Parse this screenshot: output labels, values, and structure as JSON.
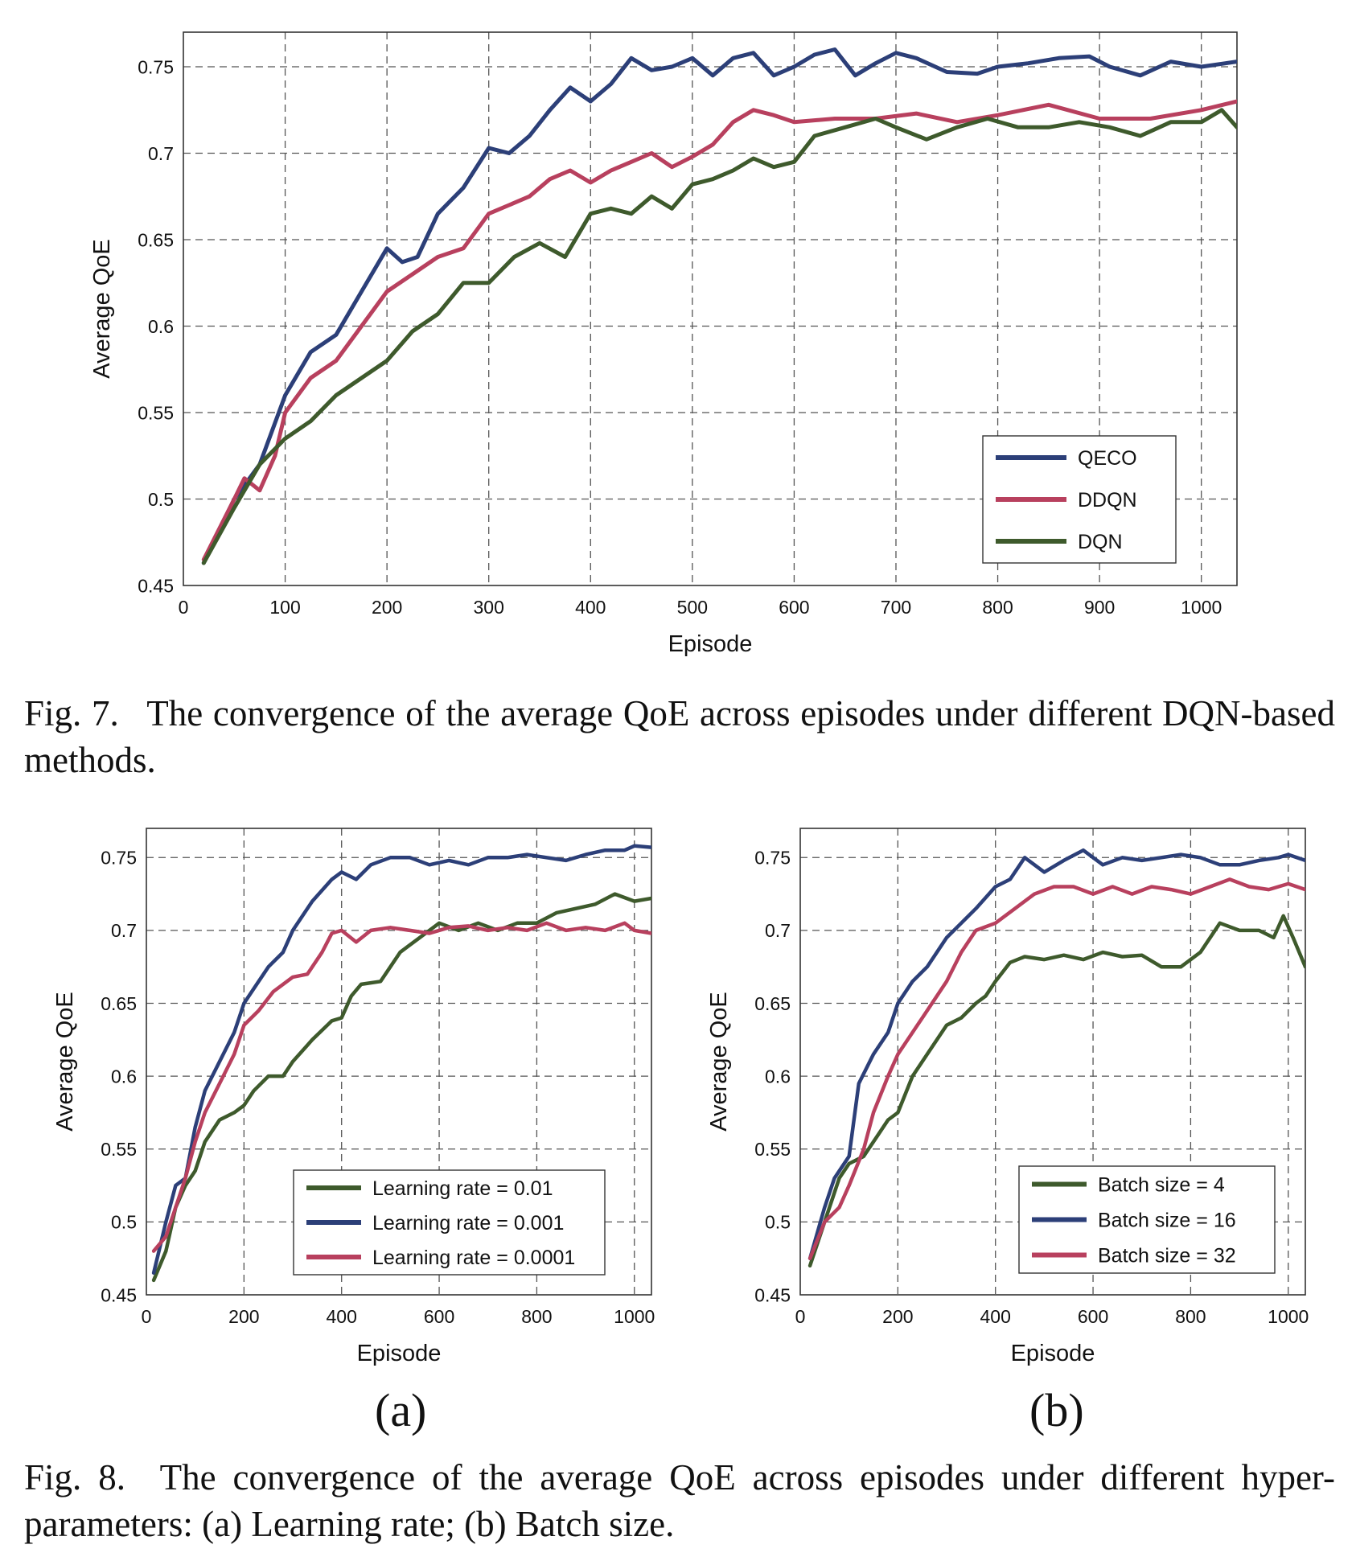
{
  "figure7": {
    "caption": "Fig. 7.  The convergence of the average QoE across episodes under different DQN-based methods."
  },
  "figure8": {
    "caption": "Fig. 8.  The convergence of the average QoE across episodes under different hyper-parameters: (a) Learning rate; (b) Batch size.",
    "panel_a_label": "(a)",
    "panel_b_label": "(b)"
  },
  "colors": {
    "blue": "#2c3f78",
    "pink": "#b8405e",
    "green": "#3e5a2c",
    "grid": "#555555",
    "frame": "#333333"
  },
  "chart_data": [
    {
      "id": "fig7",
      "type": "line",
      "xlabel": "Episode",
      "ylabel": "Average QoE",
      "xlim": [
        0,
        1035
      ],
      "ylim": [
        0.45,
        0.77
      ],
      "xticks": [
        0,
        100,
        200,
        300,
        400,
        500,
        600,
        700,
        800,
        900,
        1000
      ],
      "yticks": [
        0.45,
        0.5,
        0.55,
        0.6,
        0.65,
        0.7,
        0.75
      ],
      "ytick_labels": [
        "0.45",
        "0.5",
        "0.55",
        "0.6",
        "0.65",
        "0.7",
        "0.75"
      ],
      "grid": true,
      "legend_position": "bottom-right",
      "series": [
        {
          "name": "QECO",
          "color": "#2c3f78",
          "x": [
            20,
            50,
            75,
            100,
            125,
            150,
            175,
            200,
            215,
            230,
            250,
            275,
            300,
            320,
            340,
            360,
            380,
            400,
            420,
            440,
            460,
            480,
            500,
            520,
            540,
            560,
            580,
            600,
            620,
            640,
            660,
            680,
            700,
            720,
            750,
            780,
            800,
            830,
            860,
            890,
            910,
            940,
            970,
            1000,
            1035
          ],
          "y": [
            0.463,
            0.5,
            0.52,
            0.56,
            0.585,
            0.595,
            0.62,
            0.645,
            0.637,
            0.64,
            0.665,
            0.68,
            0.703,
            0.7,
            0.71,
            0.725,
            0.738,
            0.73,
            0.74,
            0.755,
            0.748,
            0.75,
            0.755,
            0.745,
            0.755,
            0.758,
            0.745,
            0.75,
            0.757,
            0.76,
            0.745,
            0.752,
            0.758,
            0.755,
            0.747,
            0.746,
            0.75,
            0.752,
            0.755,
            0.756,
            0.75,
            0.745,
            0.753,
            0.75,
            0.753
          ]
        },
        {
          "name": "DDQN",
          "color": "#b8405e",
          "x": [
            20,
            50,
            60,
            75,
            90,
            100,
            125,
            150,
            175,
            200,
            225,
            250,
            275,
            300,
            320,
            340,
            360,
            380,
            400,
            420,
            440,
            460,
            480,
            500,
            520,
            540,
            560,
            580,
            600,
            640,
            680,
            720,
            760,
            800,
            850,
            900,
            950,
            1000,
            1035
          ],
          "y": [
            0.465,
            0.5,
            0.512,
            0.505,
            0.525,
            0.55,
            0.57,
            0.58,
            0.6,
            0.62,
            0.63,
            0.64,
            0.645,
            0.665,
            0.67,
            0.675,
            0.685,
            0.69,
            0.683,
            0.69,
            0.695,
            0.7,
            0.692,
            0.698,
            0.705,
            0.718,
            0.725,
            0.722,
            0.718,
            0.72,
            0.72,
            0.723,
            0.718,
            0.722,
            0.728,
            0.72,
            0.72,
            0.725,
            0.73
          ]
        },
        {
          "name": "DQN",
          "color": "#3e5a2c",
          "x": [
            20,
            50,
            75,
            100,
            125,
            150,
            175,
            200,
            225,
            250,
            275,
            300,
            325,
            350,
            375,
            400,
            420,
            440,
            460,
            480,
            500,
            520,
            540,
            560,
            580,
            600,
            620,
            650,
            680,
            700,
            730,
            760,
            790,
            820,
            850,
            880,
            910,
            940,
            970,
            1000,
            1020,
            1035
          ],
          "y": [
            0.463,
            0.495,
            0.52,
            0.535,
            0.545,
            0.56,
            0.57,
            0.58,
            0.597,
            0.607,
            0.625,
            0.625,
            0.64,
            0.648,
            0.64,
            0.665,
            0.668,
            0.665,
            0.675,
            0.668,
            0.682,
            0.685,
            0.69,
            0.697,
            0.692,
            0.695,
            0.71,
            0.715,
            0.72,
            0.715,
            0.708,
            0.715,
            0.72,
            0.715,
            0.715,
            0.718,
            0.715,
            0.71,
            0.718,
            0.718,
            0.725,
            0.715
          ]
        }
      ]
    },
    {
      "id": "fig8a",
      "type": "line",
      "xlabel": "Episode",
      "ylabel": "Average QoE",
      "xlim": [
        0,
        1035
      ],
      "ylim": [
        0.45,
        0.77
      ],
      "xticks": [
        0,
        200,
        400,
        600,
        800,
        1000
      ],
      "yticks": [
        0.45,
        0.5,
        0.55,
        0.6,
        0.65,
        0.7,
        0.75
      ],
      "ytick_labels": [
        "0.45",
        "0.5",
        "0.55",
        "0.6",
        "0.65",
        "0.7",
        "0.75"
      ],
      "grid": true,
      "legend_position": "bottom-right",
      "series": [
        {
          "name": "Learning rate = 0.01",
          "color": "#3e5a2c",
          "x": [
            15,
            40,
            60,
            80,
            100,
            120,
            150,
            180,
            200,
            220,
            250,
            280,
            300,
            340,
            380,
            400,
            420,
            440,
            480,
            520,
            560,
            600,
            640,
            680,
            720,
            760,
            800,
            840,
            880,
            920,
            960,
            1000,
            1035
          ],
          "y": [
            0.46,
            0.48,
            0.51,
            0.525,
            0.535,
            0.555,
            0.57,
            0.575,
            0.58,
            0.59,
            0.6,
            0.6,
            0.61,
            0.625,
            0.638,
            0.64,
            0.655,
            0.663,
            0.665,
            0.685,
            0.695,
            0.705,
            0.7,
            0.705,
            0.7,
            0.705,
            0.705,
            0.712,
            0.715,
            0.718,
            0.725,
            0.72,
            0.722
          ]
        },
        {
          "name": "Learning rate = 0.001",
          "color": "#2c3f78",
          "x": [
            15,
            40,
            60,
            80,
            100,
            120,
            150,
            180,
            200,
            220,
            250,
            280,
            300,
            340,
            380,
            400,
            430,
            460,
            500,
            540,
            580,
            620,
            660,
            700,
            740,
            780,
            820,
            860,
            900,
            940,
            980,
            1000,
            1035
          ],
          "y": [
            0.465,
            0.5,
            0.525,
            0.53,
            0.565,
            0.59,
            0.61,
            0.63,
            0.65,
            0.66,
            0.675,
            0.685,
            0.7,
            0.72,
            0.735,
            0.74,
            0.735,
            0.745,
            0.75,
            0.75,
            0.745,
            0.748,
            0.745,
            0.75,
            0.75,
            0.752,
            0.75,
            0.748,
            0.752,
            0.755,
            0.755,
            0.758,
            0.757
          ]
        },
        {
          "name": "Learning rate = 0.0001",
          "color": "#b8405e",
          "x": [
            15,
            40,
            60,
            80,
            100,
            120,
            150,
            180,
            200,
            230,
            260,
            300,
            330,
            360,
            380,
            400,
            430,
            460,
            500,
            540,
            580,
            620,
            660,
            700,
            740,
            780,
            820,
            860,
            900,
            940,
            980,
            1000,
            1035
          ],
          "y": [
            0.48,
            0.49,
            0.51,
            0.53,
            0.555,
            0.575,
            0.595,
            0.615,
            0.635,
            0.645,
            0.658,
            0.668,
            0.67,
            0.685,
            0.698,
            0.7,
            0.692,
            0.7,
            0.702,
            0.7,
            0.698,
            0.702,
            0.703,
            0.7,
            0.702,
            0.7,
            0.705,
            0.7,
            0.702,
            0.7,
            0.705,
            0.7,
            0.698
          ]
        }
      ]
    },
    {
      "id": "fig8b",
      "type": "line",
      "xlabel": "Episode",
      "ylabel": "Average QoE",
      "xlim": [
        0,
        1035
      ],
      "ylim": [
        0.45,
        0.77
      ],
      "xticks": [
        0,
        200,
        400,
        600,
        800,
        1000
      ],
      "yticks": [
        0.45,
        0.5,
        0.55,
        0.6,
        0.65,
        0.7,
        0.75
      ],
      "ytick_labels": [
        "0.45",
        "0.5",
        "0.55",
        "0.6",
        "0.65",
        "0.7",
        "0.75"
      ],
      "grid": true,
      "legend_position": "bottom-right",
      "series": [
        {
          "name": "Batch size = 4",
          "color": "#3e5a2c",
          "x": [
            20,
            50,
            80,
            100,
            130,
            160,
            180,
            200,
            230,
            260,
            300,
            330,
            360,
            380,
            400,
            430,
            460,
            500,
            540,
            580,
            620,
            660,
            700,
            740,
            780,
            820,
            860,
            900,
            940,
            970,
            990,
            1010,
            1035
          ],
          "y": [
            0.47,
            0.5,
            0.53,
            0.54,
            0.545,
            0.56,
            0.57,
            0.575,
            0.6,
            0.615,
            0.635,
            0.64,
            0.65,
            0.655,
            0.665,
            0.678,
            0.682,
            0.68,
            0.683,
            0.68,
            0.685,
            0.682,
            0.683,
            0.675,
            0.675,
            0.685,
            0.705,
            0.7,
            0.7,
            0.695,
            0.71,
            0.695,
            0.675
          ]
        },
        {
          "name": "Batch size = 16",
          "color": "#2c3f78",
          "x": [
            20,
            50,
            70,
            100,
            120,
            150,
            180,
            200,
            230,
            260,
            300,
            330,
            360,
            400,
            430,
            460,
            500,
            540,
            580,
            620,
            660,
            700,
            740,
            780,
            820,
            860,
            900,
            940,
            980,
            1000,
            1035
          ],
          "y": [
            0.475,
            0.51,
            0.53,
            0.545,
            0.595,
            0.615,
            0.63,
            0.65,
            0.665,
            0.675,
            0.695,
            0.705,
            0.715,
            0.73,
            0.735,
            0.75,
            0.74,
            0.748,
            0.755,
            0.745,
            0.75,
            0.748,
            0.75,
            0.752,
            0.75,
            0.745,
            0.745,
            0.748,
            0.75,
            0.752,
            0.748
          ]
        },
        {
          "name": "Batch size = 32",
          "color": "#b8405e",
          "x": [
            20,
            50,
            80,
            100,
            130,
            150,
            180,
            200,
            230,
            260,
            300,
            330,
            360,
            400,
            440,
            480,
            520,
            560,
            600,
            640,
            680,
            720,
            760,
            800,
            840,
            880,
            920,
            960,
            1000,
            1035
          ],
          "y": [
            0.475,
            0.5,
            0.51,
            0.525,
            0.55,
            0.575,
            0.6,
            0.615,
            0.63,
            0.645,
            0.665,
            0.685,
            0.7,
            0.705,
            0.715,
            0.725,
            0.73,
            0.73,
            0.725,
            0.73,
            0.725,
            0.73,
            0.728,
            0.725,
            0.73,
            0.735,
            0.73,
            0.728,
            0.732,
            0.728
          ]
        }
      ]
    }
  ]
}
